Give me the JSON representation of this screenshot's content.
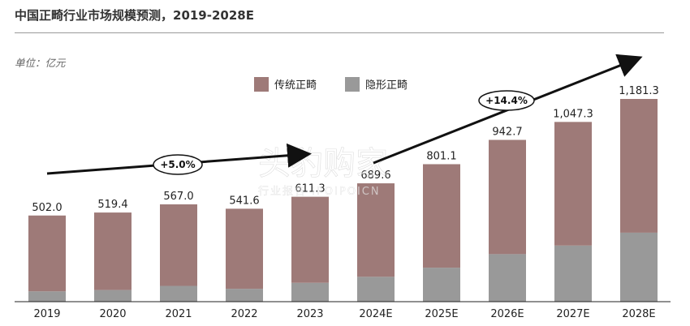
{
  "title": "中国正畸行业市场规模预测，2019-2028E",
  "unit": "单位：亿元",
  "colors": {
    "traditional": "#9e7a78",
    "invisible": "#999999",
    "axis": "#222222"
  },
  "watermark": {
    "main": "头豹购家",
    "sub": "行业报告 IPOIPOICN"
  },
  "cagr": [
    {
      "label": "+5.0%"
    },
    {
      "label": "+14.4%"
    }
  ],
  "chart_data": {
    "type": "bar",
    "stacked": true,
    "categories": [
      "2019",
      "2020",
      "2021",
      "2022",
      "2023",
      "2024E",
      "2025E",
      "2026E",
      "2027E",
      "2028E"
    ],
    "totals_labels": [
      "502.0",
      "519.4",
      "567.0",
      "541.6",
      "611.3",
      "689.6",
      "801.1",
      "942.7",
      "1,047.3",
      "1,181.3"
    ],
    "series": [
      {
        "name": "隐形正畸",
        "values": [
          60,
          68,
          92,
          75,
          110,
          145,
          198,
          277,
          327,
          402
        ]
      },
      {
        "name": "传统正畸",
        "values": [
          442,
          451.4,
          475,
          466.6,
          501.3,
          544.6,
          603.1,
          665.7,
          720.3,
          779.3
        ]
      }
    ],
    "totals": [
      502.0,
      519.4,
      567.0,
      541.6,
      611.3,
      689.6,
      801.1,
      942.7,
      1047.3,
      1181.3
    ],
    "legend": [
      "传统正畸",
      "隐形正畸"
    ],
    "legend_position": "top",
    "grid": false
  }
}
